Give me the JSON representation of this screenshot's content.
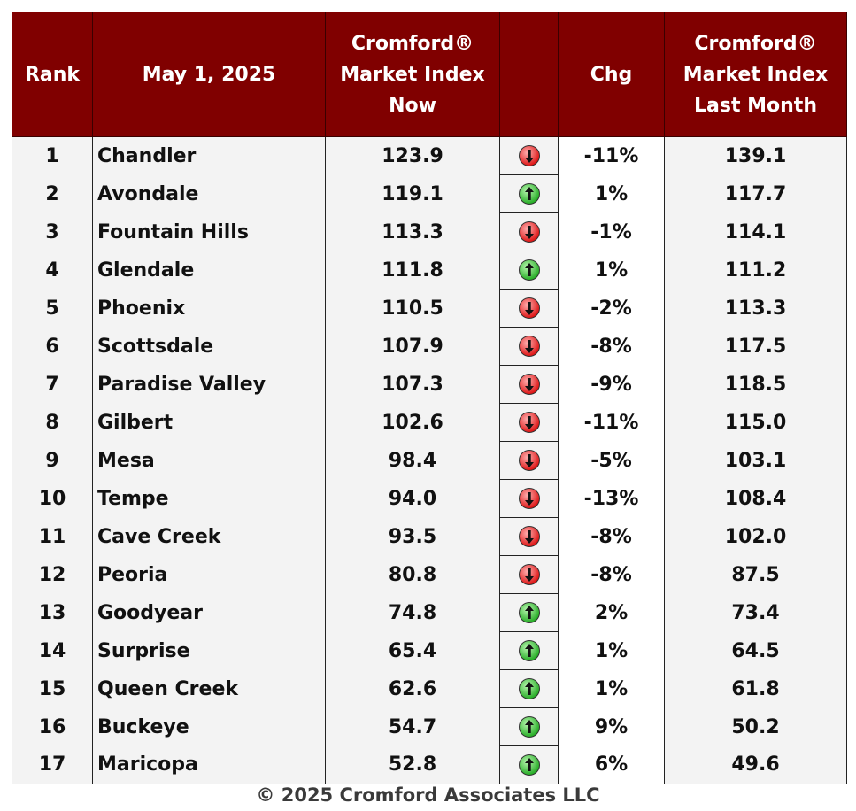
{
  "chart_data": {
    "type": "table",
    "columns": [
      "Rank",
      "May 1, 2025",
      "Cromford® Market Index Now",
      "",
      "Chg",
      "Cromford® Market Index Last Month"
    ],
    "rows": [
      {
        "rank": "1",
        "city": "Chandler",
        "now": "123.9",
        "direction": "down",
        "chg": "-11%",
        "last": "139.1"
      },
      {
        "rank": "2",
        "city": "Avondale",
        "now": "119.1",
        "direction": "up",
        "chg": "1%",
        "last": "117.7"
      },
      {
        "rank": "3",
        "city": "Fountain Hills",
        "now": "113.3",
        "direction": "down",
        "chg": "-1%",
        "last": "114.1"
      },
      {
        "rank": "4",
        "city": "Glendale",
        "now": "111.8",
        "direction": "up",
        "chg": "1%",
        "last": "111.2"
      },
      {
        "rank": "5",
        "city": "Phoenix",
        "now": "110.5",
        "direction": "down",
        "chg": "-2%",
        "last": "113.3"
      },
      {
        "rank": "6",
        "city": "Scottsdale",
        "now": "107.9",
        "direction": "down",
        "chg": "-8%",
        "last": "117.5"
      },
      {
        "rank": "7",
        "city": "Paradise Valley",
        "now": "107.3",
        "direction": "down",
        "chg": "-9%",
        "last": "118.5"
      },
      {
        "rank": "8",
        "city": "Gilbert",
        "now": "102.6",
        "direction": "down",
        "chg": "-11%",
        "last": "115.0"
      },
      {
        "rank": "9",
        "city": "Mesa",
        "now": "98.4",
        "direction": "down",
        "chg": "-5%",
        "last": "103.1"
      },
      {
        "rank": "10",
        "city": "Tempe",
        "now": "94.0",
        "direction": "down",
        "chg": "-13%",
        "last": "108.4"
      },
      {
        "rank": "11",
        "city": "Cave Creek",
        "now": "93.5",
        "direction": "down",
        "chg": "-8%",
        "last": "102.0"
      },
      {
        "rank": "12",
        "city": "Peoria",
        "now": "80.8",
        "direction": "down",
        "chg": "-8%",
        "last": "87.5"
      },
      {
        "rank": "13",
        "city": "Goodyear",
        "now": "74.8",
        "direction": "up",
        "chg": "2%",
        "last": "73.4"
      },
      {
        "rank": "14",
        "city": "Surprise",
        "now": "65.4",
        "direction": "up",
        "chg": "1%",
        "last": "64.5"
      },
      {
        "rank": "15",
        "city": "Queen Creek",
        "now": "62.6",
        "direction": "up",
        "chg": "1%",
        "last": "61.8"
      },
      {
        "rank": "16",
        "city": "Buckeye",
        "now": "54.7",
        "direction": "up",
        "chg": "9%",
        "last": "50.2"
      },
      {
        "rank": "17",
        "city": "Maricopa",
        "now": "52.8",
        "direction": "up",
        "chg": "6%",
        "last": "49.6"
      }
    ]
  },
  "footer": "© 2025 Cromford Associates LLC",
  "colors": {
    "header_bg": "#800000",
    "header_text": "#ffffff",
    "row_bg": "#f3f3f3",
    "up_arrow": "#22aa22",
    "down_arrow": "#dd1111"
  },
  "icons": {
    "up": "green-up-arrow-icon",
    "down": "red-down-arrow-icon"
  }
}
